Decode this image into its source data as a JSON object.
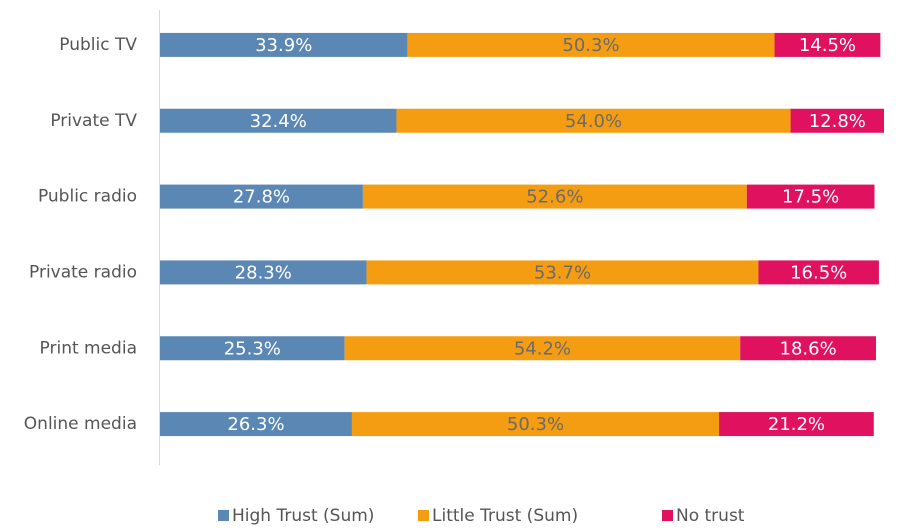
{
  "chart_data": {
    "type": "bar",
    "orientation": "horizontal",
    "stacked": true,
    "categories": [
      "Public TV",
      "Private TV",
      "Public radio",
      "Private radio",
      "Print media",
      "Online media"
    ],
    "series": [
      {
        "name": "High Trust (Sum)",
        "color": "#5b87b5",
        "label_color": "#ffffff",
        "values": [
          33.9,
          32.4,
          27.8,
          28.3,
          25.3,
          26.3
        ],
        "value_labels": [
          "33.9%",
          "32.4%",
          "27.8%",
          "28.3%",
          "25.3%",
          "26.3%"
        ]
      },
      {
        "name": "Little Trust (Sum)",
        "color": "#f59d12",
        "label_color": "#6b6b6b",
        "values": [
          50.3,
          54.0,
          52.6,
          53.7,
          54.2,
          50.3
        ],
        "value_labels": [
          "50.3%",
          "54.0%",
          "52.6%",
          "53.7%",
          "54.2%",
          "50.3%"
        ]
      },
      {
        "name": "No trust",
        "color": "#e0115f",
        "label_color": "#ffffff",
        "values": [
          14.5,
          12.8,
          17.5,
          16.5,
          18.6,
          21.2
        ],
        "value_labels": [
          "14.5%",
          "12.8%",
          "17.5%",
          "16.5%",
          "18.6%",
          "21.2%"
        ]
      }
    ],
    "legend": "bottom"
  }
}
